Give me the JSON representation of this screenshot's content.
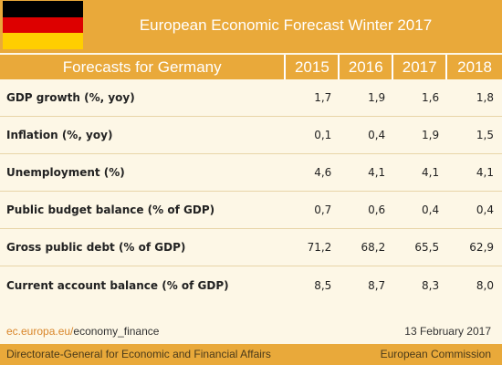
{
  "header": {
    "title": "European Economic Forecast Winter 2017",
    "flag": {
      "name": "germany-flag",
      "colors": [
        "#000000",
        "#dd0000",
        "#ffce00"
      ]
    }
  },
  "table": {
    "label_header": "Forecasts for Germany",
    "years": [
      "2015",
      "2016",
      "2017",
      "2018"
    ],
    "rows": [
      {
        "label": "GDP growth (%, yoy)",
        "values": [
          "1,7",
          "1,9",
          "1,6",
          "1,8"
        ]
      },
      {
        "label": "Inflation (%, yoy)",
        "values": [
          "0,1",
          "0,4",
          "1,9",
          "1,5"
        ]
      },
      {
        "label": "Unemployment (%)",
        "values": [
          "4,6",
          "4,1",
          "4,1",
          "4,1"
        ]
      },
      {
        "label": "Public budget balance (% of GDP)",
        "values": [
          "0,7",
          "0,6",
          "0,4",
          "0,4"
        ]
      },
      {
        "label": "Gross public debt (% of GDP)",
        "values": [
          "71,2",
          "68,2",
          "65,5",
          "62,9"
        ]
      },
      {
        "label": "Current account balance (% of GDP)",
        "values": [
          "8,5",
          "8,7",
          "8,3",
          "8,0"
        ]
      }
    ]
  },
  "footer": {
    "url_prefix": "ec.europa.eu/",
    "url_suffix": "economy_finance",
    "date": "13 February 2017",
    "left": "Directorate-General for Economic and Financial Affairs",
    "right": "European Commission"
  },
  "colors": {
    "accent": "#e9a93a",
    "background": "#fdf7e6",
    "url_accent": "#d9862a"
  }
}
